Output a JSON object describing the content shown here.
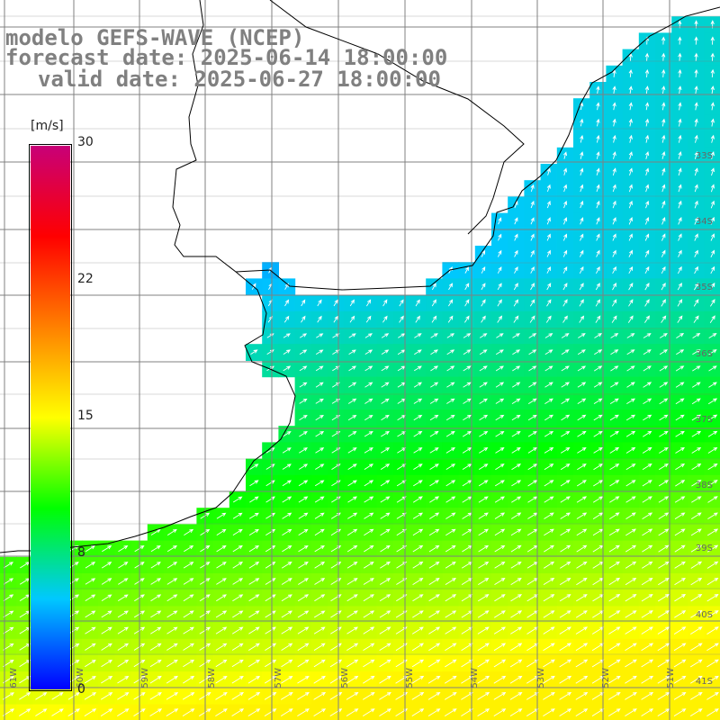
{
  "title": {
    "model": "modelo GEFS-WAVE (NCEP)",
    "forecast": "forecast date: 2025-06-14 18:00:00",
    "valid": "valid date: 2025-06-27 18:00:00"
  },
  "colorbar": {
    "unit": "[m/s]",
    "ticks": [
      "30",
      "22",
      "15",
      "8",
      "0"
    ],
    "min": 0,
    "max": 30,
    "stops": [
      "#0000ff",
      "#00c8ff",
      "#00ff00",
      "#ffff00",
      "#ff8000",
      "#ff0000",
      "#c80078"
    ]
  },
  "lat_labels": [
    "33S",
    "34S",
    "35S",
    "36S",
    "37S",
    "38S",
    "39S",
    "40S",
    "41S"
  ],
  "lon_labels": [
    "61W",
    "60W",
    "59W",
    "58W",
    "57W",
    "56W",
    "55W",
    "54W",
    "53W",
    "52W",
    "51W"
  ],
  "colors": {
    "land": "#ffffff",
    "coast": "#000000",
    "grid": "#808080",
    "arrow": "#ffffff",
    "title": "#808080"
  }
}
